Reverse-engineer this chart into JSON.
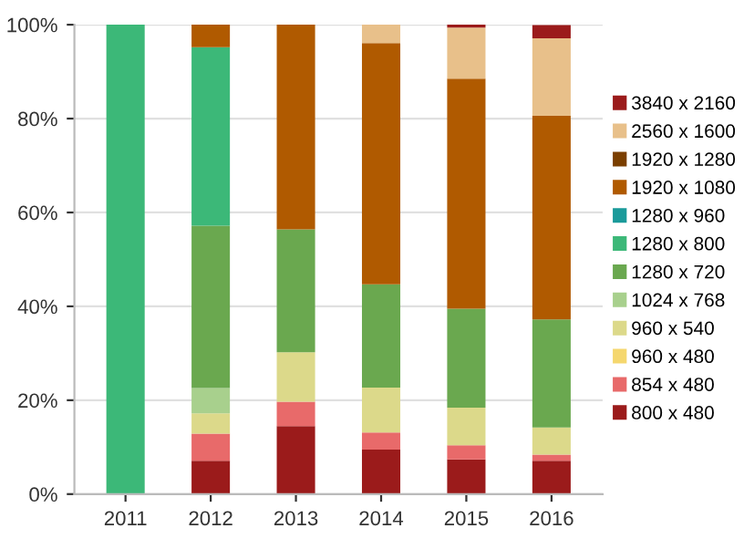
{
  "chart_data": {
    "type": "bar",
    "stacked": true,
    "categories": [
      "2011",
      "2012",
      "2013",
      "2014",
      "2015",
      "2016"
    ],
    "series": [
      {
        "name": "800 x 480",
        "color": "#9b1b1b",
        "values": [
          0,
          7.1,
          14.5,
          9.5,
          7.4,
          7.1
        ]
      },
      {
        "name": "854 x 480",
        "color": "#e86a6a",
        "values": [
          0,
          5.8,
          5.2,
          3.6,
          3,
          1.3
        ]
      },
      {
        "name": "960 x 480",
        "color": "#f5d76e",
        "values": [
          0,
          0,
          0,
          0,
          0,
          0
        ]
      },
      {
        "name": "960 x 540",
        "color": "#dcd98a",
        "values": [
          0,
          4.3,
          10.5,
          9.6,
          8,
          5.8
        ]
      },
      {
        "name": "1024 x 768",
        "color": "#a8d08d",
        "values": [
          0,
          5.4,
          0,
          0,
          0,
          0
        ]
      },
      {
        "name": "1280 x 720",
        "color": "#6aa84f",
        "values": [
          0,
          34.6,
          26.2,
          22,
          21.1,
          23
        ]
      },
      {
        "name": "1280 x 800",
        "color": "#3cb878",
        "values": [
          100,
          38,
          0,
          0,
          0,
          0
        ]
      },
      {
        "name": "1280 x 960",
        "color": "#1a9a9a",
        "values": [
          0,
          0,
          0,
          0,
          0,
          0
        ]
      },
      {
        "name": "1920 x 1080",
        "color": "#b05a00",
        "values": [
          0,
          4.8,
          43.6,
          51.4,
          49,
          43.4
        ]
      },
      {
        "name": "1920 x 1280",
        "color": "#7b3f00",
        "values": [
          0,
          0,
          0,
          0,
          0,
          0
        ]
      },
      {
        "name": "2560 x 1600",
        "color": "#e8c08a",
        "values": [
          0,
          0,
          0,
          3.9,
          10.9,
          16.5
        ]
      },
      {
        "name": "3840 x 2160",
        "color": "#9b1b1b",
        "values": [
          0,
          0,
          0,
          0,
          0.6,
          2.8
        ]
      }
    ],
    "ylim": [
      0,
      100
    ],
    "yticks": [
      {
        "value": 0,
        "label": "0%"
      },
      {
        "value": 20,
        "label": "20%"
      },
      {
        "value": 40,
        "label": "40%"
      },
      {
        "value": 60,
        "label": "60%"
      },
      {
        "value": 80,
        "label": "80%"
      },
      {
        "value": 100,
        "label": "100%"
      }
    ],
    "grid": "y",
    "legend": "right"
  }
}
